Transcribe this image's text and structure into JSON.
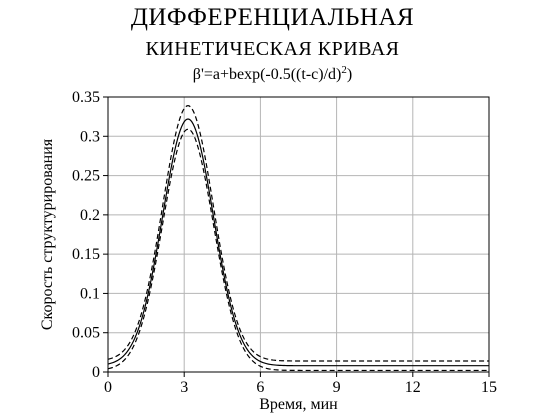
{
  "chart_data": {
    "type": "line",
    "title": "ДИФФЕРЕНЦИАЛЬНАЯ",
    "subtitle": "КИНЕТИЧЕСКАЯ КРИВАЯ",
    "formula": {
      "base": "β'=a+bexp(-0.5((t-c)/d)",
      "exponent": "2",
      "close": ")"
    },
    "xlabel": "Время, мин",
    "ylabel": "Скорость структурирования",
    "xlim": [
      0,
      15
    ],
    "ylim": [
      0,
      0.35
    ],
    "x_ticks": [
      "0",
      "3",
      "6",
      "9",
      "12",
      "15"
    ],
    "y_ticks": [
      "0",
      "0.05",
      "0.1",
      "0.15",
      "0.2",
      "0.25",
      "0.3",
      "0.35"
    ],
    "grid": true,
    "model": {
      "a": 0.008,
      "b": 0.314,
      "c": 3.15,
      "d": 1.0
    },
    "series": [
      {
        "style": "dashed",
        "a": 0.002,
        "b": 0.307,
        "c": 3.15,
        "d": 1.0
      },
      {
        "style": "solid",
        "a": 0.008,
        "b": 0.314,
        "c": 3.15,
        "d": 1.0
      },
      {
        "style": "dashed",
        "a": 0.014,
        "b": 0.325,
        "c": 3.15,
        "d": 1.0
      }
    ]
  }
}
